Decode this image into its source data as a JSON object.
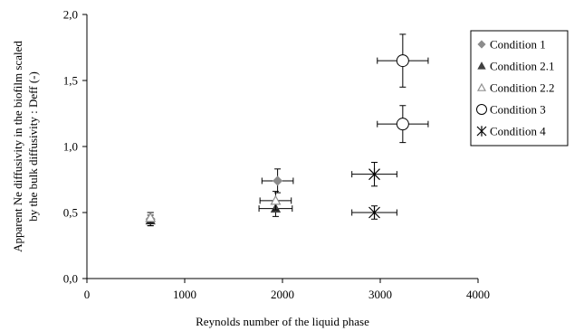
{
  "chart_data": {
    "type": "scatter",
    "title": "",
    "xlabel": "Reynolds number of the liquid phase",
    "ylabel_line1": "Apparent Ne diffusivity in the biofilm scaled",
    "ylabel_line2": "by the bulk diffusivity : Deff (-)",
    "xlim": [
      0,
      4000
    ],
    "ylim": [
      0,
      2.0
    ],
    "x_ticks": [
      0,
      1000,
      2000,
      3000,
      4000
    ],
    "x_tick_labels": [
      "0",
      "1000",
      "2000",
      "3000",
      "4000"
    ],
    "y_ticks": [
      0,
      0.5,
      1.0,
      1.5,
      2.0
    ],
    "y_tick_labels": [
      "0,0",
      "0,5",
      "1,0",
      "1,5",
      "2,0"
    ],
    "grid": false,
    "legend_position": "right",
    "series": [
      {
        "name": "Condition 1",
        "marker": "diamond",
        "color": "#8c8c8c",
        "points": [
          {
            "x": 650,
            "y": 0.45,
            "xerr": 0,
            "yerr": 0.05
          },
          {
            "x": 1950,
            "y": 0.74,
            "xerr": 160,
            "yerr": 0.09
          }
        ]
      },
      {
        "name": "Condition 2.1",
        "marker": "triangle-filled",
        "color": "#404040",
        "points": [
          {
            "x": 650,
            "y": 0.44,
            "xerr": 0,
            "yerr": 0.04
          },
          {
            "x": 1930,
            "y": 0.53,
            "xerr": 170,
            "yerr": 0.06
          }
        ]
      },
      {
        "name": "Condition 2.2",
        "marker": "triangle-open",
        "color": "#909090",
        "points": [
          {
            "x": 650,
            "y": 0.46,
            "xerr": 0,
            "yerr": 0.04
          },
          {
            "x": 1930,
            "y": 0.59,
            "xerr": 160,
            "yerr": 0.07
          }
        ]
      },
      {
        "name": "Condition 3",
        "marker": "circle-open",
        "color": "#000000",
        "points": [
          {
            "x": 3230,
            "y": 1.65,
            "xerr": 260,
            "yerr": 0.2
          },
          {
            "x": 3230,
            "y": 1.17,
            "xerr": 260,
            "yerr": 0.14
          }
        ]
      },
      {
        "name": "Condition 4",
        "marker": "star",
        "color": "#000000",
        "points": [
          {
            "x": 2940,
            "y": 0.79,
            "xerr": 230,
            "yerr": 0.09
          },
          {
            "x": 2940,
            "y": 0.5,
            "xerr": 230,
            "yerr": 0.05
          }
        ]
      }
    ]
  }
}
